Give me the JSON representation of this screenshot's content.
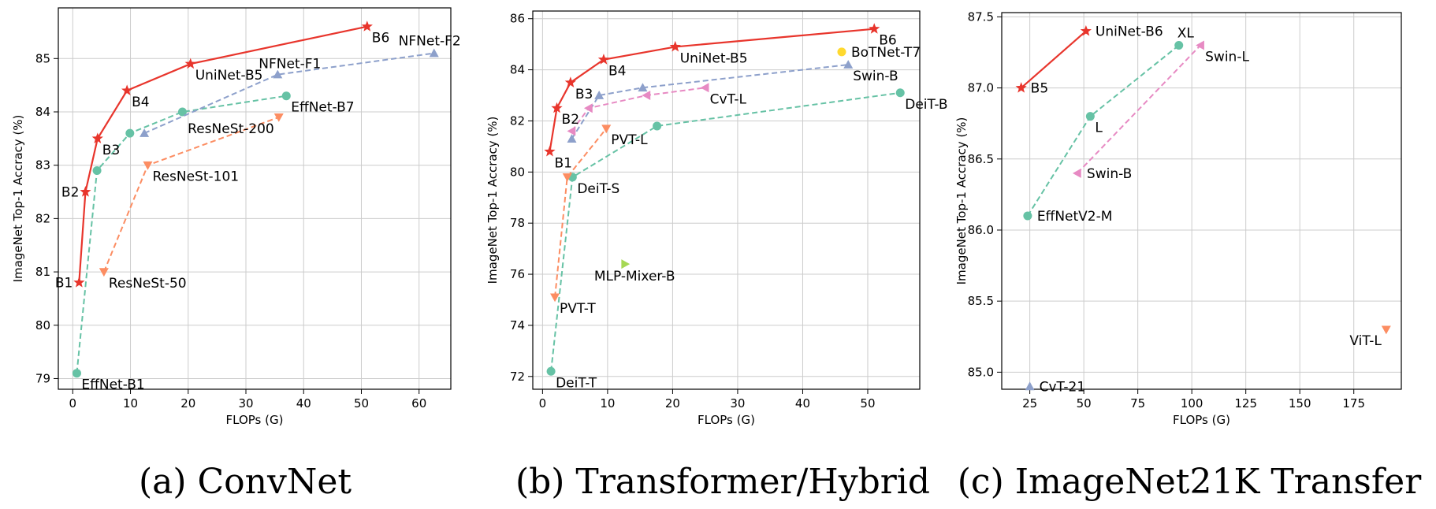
{
  "colors": {
    "uninet": "#e8352c",
    "effnet": "#66c2a5",
    "nfnet": "#8da0cb",
    "resnest": "#fc8d62",
    "swin": "#e78ac3",
    "mixer": "#a6d854",
    "botnet": "#ffd92f",
    "grid": "#cccccc"
  },
  "chart_data": [
    {
      "type": "scatter",
      "caption": "(a) ConvNet",
      "xlabel": "FLOPs (G)",
      "ylabel": "ImageNet Top-1 Accracy (%)",
      "xlim": [
        -2.5,
        65.5
      ],
      "ylim": [
        78.8,
        85.95
      ],
      "xticks": [
        0,
        10,
        20,
        30,
        40,
        50,
        60
      ],
      "yticks": [
        79,
        80,
        81,
        82,
        83,
        84,
        85
      ],
      "grid": true,
      "series": [
        {
          "name": "EffNet",
          "color_key": "effnet",
          "marker": "circle",
          "line": "dashed",
          "x": [
            0.7,
            4.2,
            9.9,
            19.0,
            37.0
          ],
          "y": [
            79.1,
            82.9,
            83.6,
            84.0,
            84.3
          ],
          "labels": [
            {
              "idx": 0,
              "text": "EffNet-B1",
              "pos": "below-right"
            },
            {
              "idx": 4,
              "text": "EffNet-B7",
              "pos": "below-right"
            }
          ]
        },
        {
          "name": "NFNet",
          "color_key": "nfnet",
          "marker": "triangle-up",
          "line": "dashed",
          "x": [
            12.4,
            35.5,
            62.6
          ],
          "y": [
            83.6,
            84.7,
            85.1
          ],
          "labels": [
            {
              "idx": 1,
              "text": "NFNet-F1",
              "pos": "above-right"
            },
            {
              "idx": 2,
              "text": "NFNet-F2",
              "pos": "above-left"
            }
          ]
        },
        {
          "name": "ResNeSt",
          "color_key": "resnest",
          "marker": "triangle-down",
          "line": "dashed",
          "x": [
            5.4,
            13.0,
            35.7
          ],
          "y": [
            81.0,
            83.0,
            83.9
          ],
          "labels": [
            {
              "idx": 0,
              "text": "ResNeSt-50",
              "pos": "below-right"
            },
            {
              "idx": 1,
              "text": "ResNeSt-101",
              "pos": "below-right"
            },
            {
              "idx": 2,
              "text": "ResNeSt-200",
              "pos": "below-left"
            }
          ]
        },
        {
          "name": "UniNet",
          "color_key": "uninet",
          "marker": "star",
          "line": "solid",
          "x": [
            1.1,
            2.2,
            4.3,
            9.4,
            20.4,
            51.0
          ],
          "y": [
            80.8,
            82.5,
            83.5,
            84.4,
            84.9,
            85.6
          ],
          "labels": [
            {
              "idx": 0,
              "text": "B1",
              "pos": "left"
            },
            {
              "idx": 1,
              "text": "B2",
              "pos": "left"
            },
            {
              "idx": 2,
              "text": "B3",
              "pos": "below-right"
            },
            {
              "idx": 3,
              "text": "B4",
              "pos": "below-right"
            },
            {
              "idx": 4,
              "text": "UniNet-B5",
              "pos": "below-right"
            },
            {
              "idx": 5,
              "text": "B6",
              "pos": "below-right"
            }
          ]
        }
      ]
    },
    {
      "type": "scatter",
      "caption": "(b) Transformer/Hybrid",
      "xlabel": "FLOPs (G)",
      "ylabel": "ImageNet Top-1 Accracy (%)",
      "xlim": [
        -1.5,
        58.0
      ],
      "ylim": [
        71.5,
        86.3
      ],
      "xticks": [
        0,
        10,
        20,
        30,
        40,
        50
      ],
      "yticks": [
        72,
        74,
        76,
        78,
        80,
        82,
        84,
        86
      ],
      "grid": true,
      "series": [
        {
          "name": "DeiT",
          "color_key": "effnet",
          "marker": "circle",
          "line": "dashed",
          "x": [
            1.3,
            4.6,
            17.6,
            55.0
          ],
          "y": [
            72.2,
            79.8,
            81.8,
            83.1
          ],
          "labels": [
            {
              "idx": 0,
              "text": "DeiT-T",
              "pos": "below-right"
            },
            {
              "idx": 1,
              "text": "DeiT-S",
              "pos": "below-right"
            },
            {
              "idx": 3,
              "text": "DeiT-B",
              "pos": "below-right"
            }
          ]
        },
        {
          "name": "PVT",
          "color_key": "resnest",
          "marker": "triangle-down",
          "line": "dashed",
          "x": [
            1.9,
            3.8,
            9.8
          ],
          "y": [
            75.1,
            79.8,
            81.7
          ],
          "labels": [
            {
              "idx": 0,
              "text": "PVT-T",
              "pos": "below-right"
            },
            {
              "idx": 2,
              "text": "PVT-L",
              "pos": "below-right"
            }
          ]
        },
        {
          "name": "Swin",
          "color_key": "nfnet",
          "marker": "triangle-up",
          "line": "dashed",
          "x": [
            4.5,
            8.7,
            15.4,
            47.0
          ],
          "y": [
            81.3,
            83.0,
            83.3,
            84.2
          ],
          "labels": [
            {
              "idx": 3,
              "text": "Swin-B",
              "pos": "below-right"
            }
          ]
        },
        {
          "name": "CvT",
          "color_key": "swin",
          "marker": "triangle-left",
          "line": "dashed",
          "x": [
            4.5,
            7.1,
            16.0,
            25.0
          ],
          "y": [
            81.6,
            82.5,
            83.0,
            83.3
          ],
          "labels": [
            {
              "idx": 3,
              "text": "CvT-L",
              "pos": "below-right"
            }
          ]
        },
        {
          "name": "MLP-Mixer",
          "color_key": "mixer",
          "marker": "triangle-right",
          "line": "none",
          "x": [
            12.7
          ],
          "y": [
            76.4
          ],
          "labels": [
            {
              "idx": 0,
              "text": "MLP-Mixer-B",
              "pos": "below"
            }
          ]
        },
        {
          "name": "BoTNet",
          "color_key": "botnet",
          "marker": "circle",
          "line": "none",
          "x": [
            46.0
          ],
          "y": [
            84.7
          ],
          "labels": [
            {
              "idx": 0,
              "text": "BoTNet-T7",
              "pos": "right"
            }
          ]
        },
        {
          "name": "UniNet",
          "color_key": "uninet",
          "marker": "star",
          "line": "solid",
          "x": [
            1.1,
            2.2,
            4.3,
            9.4,
            20.4,
            51.0
          ],
          "y": [
            80.8,
            82.5,
            83.5,
            84.4,
            84.9,
            85.6
          ],
          "labels": [
            {
              "idx": 0,
              "text": "B1",
              "pos": "below-right"
            },
            {
              "idx": 1,
              "text": "B2",
              "pos": "below-right"
            },
            {
              "idx": 2,
              "text": "B3",
              "pos": "below-right"
            },
            {
              "idx": 3,
              "text": "B4",
              "pos": "below-right"
            },
            {
              "idx": 4,
              "text": "UniNet-B5",
              "pos": "below-right"
            },
            {
              "idx": 5,
              "text": "B6",
              "pos": "below-right"
            }
          ]
        }
      ]
    },
    {
      "type": "scatter",
      "caption": "(c) ImageNet21K Transfer",
      "xlabel": "FLOPs (G)",
      "ylabel": "ImageNet Top-1 Accracy (%)",
      "xlim": [
        12,
        197
      ],
      "ylim": [
        84.88,
        87.53
      ],
      "xticks": [
        25,
        50,
        75,
        100,
        125,
        150,
        175
      ],
      "yticks": [
        85.0,
        85.5,
        86.0,
        86.5,
        87.0,
        87.5
      ],
      "ytick_format": 1,
      "grid": true,
      "series": [
        {
          "name": "EffNetV2",
          "color_key": "effnet",
          "marker": "circle",
          "line": "dashed",
          "x": [
            24.0,
            53.0,
            94.0
          ],
          "y": [
            86.1,
            86.8,
            87.3
          ],
          "labels": [
            {
              "idx": 0,
              "text": "EffNetV2-M",
              "pos": "right"
            },
            {
              "idx": 1,
              "text": "L",
              "pos": "below-right"
            },
            {
              "idx": 2,
              "text": "XL",
              "pos": "above"
            }
          ]
        },
        {
          "name": "Swin",
          "color_key": "swin",
          "marker": "triangle-left",
          "line": "dashed",
          "x": [
            47.0,
            104.0
          ],
          "y": [
            86.4,
            87.3
          ],
          "labels": [
            {
              "idx": 0,
              "text": "Swin-B",
              "pos": "right"
            },
            {
              "idx": 1,
              "text": "Swin-L",
              "pos": "below-right"
            }
          ]
        },
        {
          "name": "CvT",
          "color_key": "nfnet",
          "marker": "triangle-up",
          "line": "none",
          "x": [
            25.0
          ],
          "y": [
            84.9
          ],
          "labels": [
            {
              "idx": 0,
              "text": "CvT-21",
              "pos": "right"
            }
          ]
        },
        {
          "name": "ViT",
          "color_key": "resnest",
          "marker": "triangle-down",
          "line": "none",
          "x": [
            190.0
          ],
          "y": [
            85.3
          ],
          "labels": [
            {
              "idx": 0,
              "text": "ViT-L",
              "pos": "below-left"
            }
          ]
        },
        {
          "name": "UniNet",
          "color_key": "uninet",
          "marker": "star",
          "line": "solid",
          "x": [
            21.0,
            51.0
          ],
          "y": [
            87.0,
            87.4
          ],
          "labels": [
            {
              "idx": 0,
              "text": "B5",
              "pos": "right"
            },
            {
              "idx": 1,
              "text": "UniNet-B6",
              "pos": "right"
            }
          ]
        }
      ]
    }
  ]
}
